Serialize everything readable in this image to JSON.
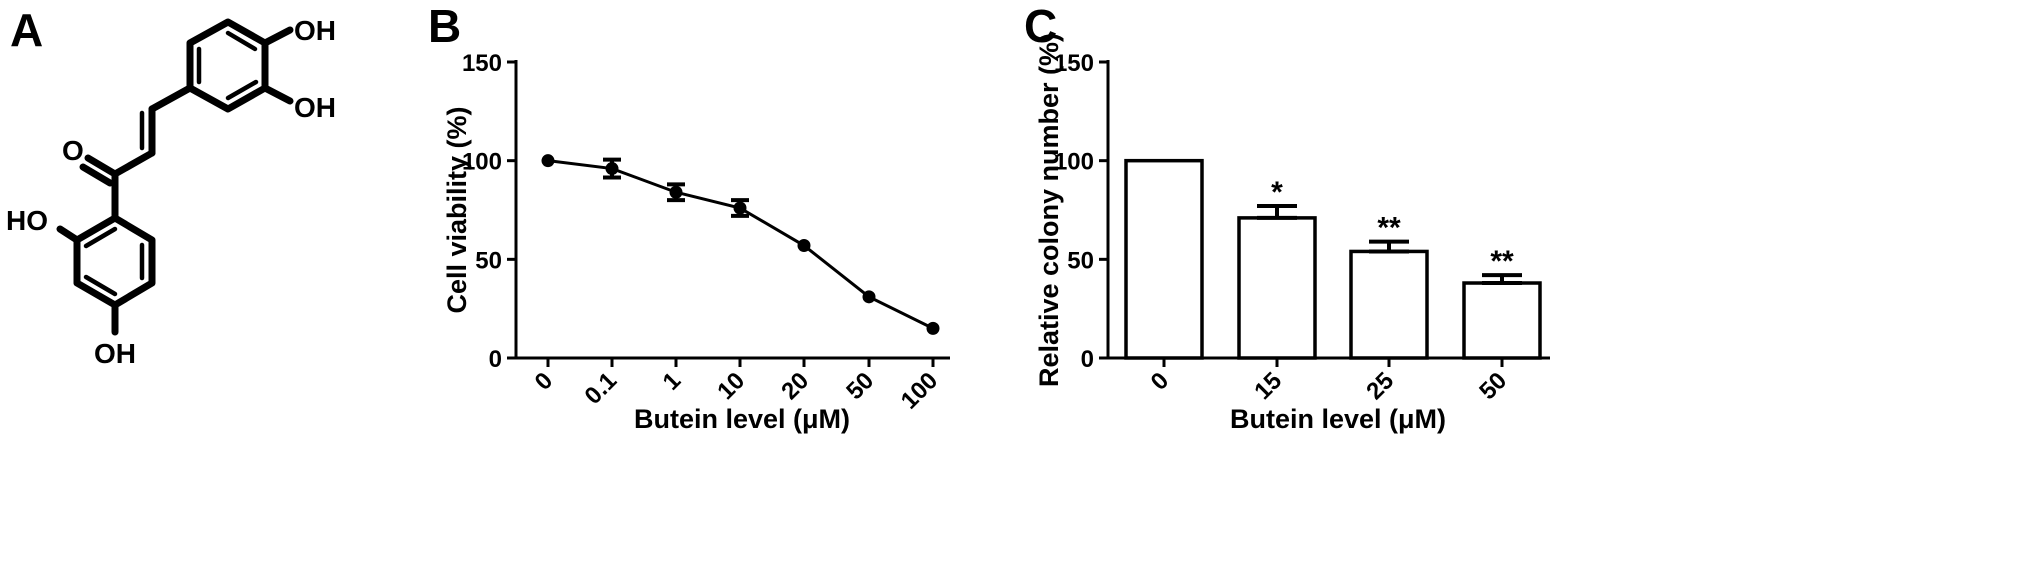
{
  "panels": {
    "a": {
      "label": "A"
    },
    "b": {
      "label": "B"
    },
    "c": {
      "label": "C"
    }
  },
  "structure": {
    "atoms": {
      "oh_top": "OH",
      "oh_right": "OH",
      "o_carbonyl": "O",
      "ho_left": "HO",
      "oh_bottom": "OH"
    }
  },
  "chart_data": [
    {
      "type": "line",
      "panel": "B",
      "title": "",
      "xlabel": "Butein level (μM)",
      "ylabel": "Cell viability (%)",
      "categories": [
        "0",
        "0.1",
        "1",
        "10",
        "20",
        "50",
        "100"
      ],
      "series": [
        {
          "values": [
            100,
            96,
            84,
            76,
            57,
            31,
            15
          ],
          "errors": [
            0,
            4.5,
            4,
            4,
            0,
            0,
            0
          ]
        }
      ],
      "ylim": [
        0,
        150
      ],
      "yticks": [
        "0",
        "50",
        "100",
        "150"
      ],
      "grid": false,
      "marker": "circle"
    },
    {
      "type": "bar",
      "panel": "C",
      "title": "",
      "xlabel": "Butein level (μM)",
      "ylabel": "Relative colony number (%)",
      "categories": [
        "0",
        "15",
        "25",
        "50"
      ],
      "series": [
        {
          "values": [
            100,
            71,
            54,
            38
          ],
          "errors": [
            0,
            6,
            5,
            4
          ]
        }
      ],
      "significance": [
        "",
        "*",
        "**",
        "**"
      ],
      "ylim": [
        0,
        150
      ],
      "yticks": [
        "0",
        "50",
        "100",
        "150"
      ],
      "grid": false,
      "bar_fill": "#ffffff"
    }
  ]
}
